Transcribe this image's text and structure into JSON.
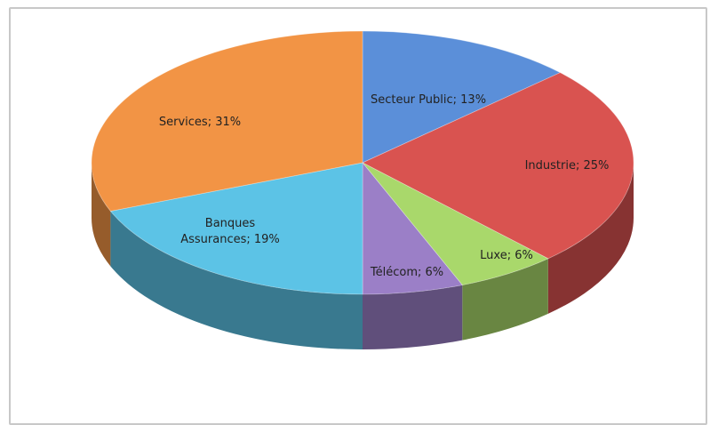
{
  "chart_data": {
    "type": "pie",
    "title": "",
    "categories": [
      "Secteur Public",
      "Industrie",
      "Luxe",
      "Télécom",
      "Banques Assurances",
      "Services"
    ],
    "values": [
      13,
      25,
      6,
      6,
      19,
      31
    ],
    "unit": "%",
    "labels": [
      "Secteur Public; 13%",
      "Industrie; 25%",
      "Luxe; 6%",
      "Télécom; 6%",
      "Banques Assurances; 19%",
      "Services; 31%"
    ],
    "colors": [
      "#5b8fd9",
      "#d95350",
      "#a9d86b",
      "#9b7fc7",
      "#5cc3e6",
      "#f29445"
    ],
    "style": "3d-pie",
    "legend": "none"
  }
}
